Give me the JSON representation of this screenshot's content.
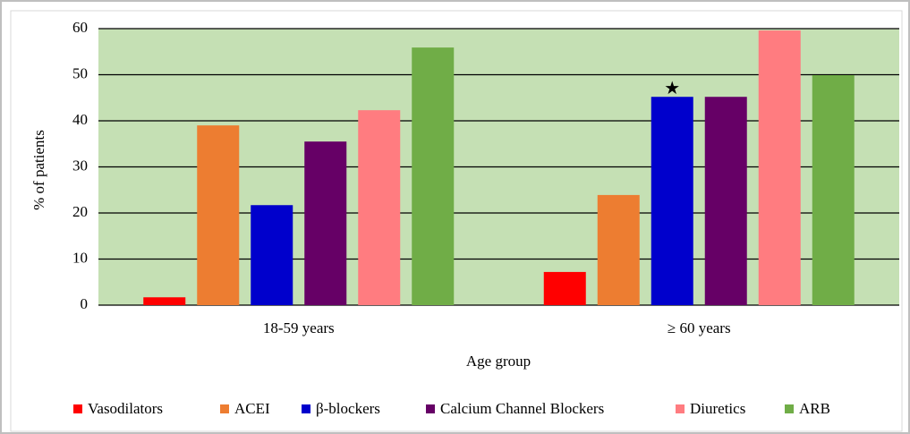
{
  "chart_data": {
    "type": "bar",
    "xlabel": "Age group",
    "ylabel": "% of patients",
    "categories": [
      "18-59 years",
      "≥ 60 years"
    ],
    "series": [
      {
        "name": "Vasodilators",
        "color": "#ff0000",
        "values": [
          1.7,
          7.2
        ]
      },
      {
        "name": "ACEI",
        "color": "#ed7d31",
        "values": [
          39,
          23.9
        ]
      },
      {
        "name": "β-blockers",
        "color": "#0000cc",
        "values": [
          21.7,
          45.2
        ]
      },
      {
        "name": "Calcium Channel Blockers",
        "color": "#660066",
        "values": [
          35.5,
          45.2
        ]
      },
      {
        "name": "Diuretics",
        "color": "#ff7c80",
        "values": [
          42.3,
          59.6
        ]
      },
      {
        "name": "ARB",
        "color": "#70ad47",
        "values": [
          55.9,
          49.9
        ]
      }
    ],
    "annotations": [
      "★"
    ],
    "ylim": [
      0,
      60
    ],
    "yticks": [
      0,
      10,
      20,
      30,
      40,
      50,
      60
    ],
    "grid": true,
    "legend": "bottom",
    "plot_background": "#c5e0b4"
  }
}
